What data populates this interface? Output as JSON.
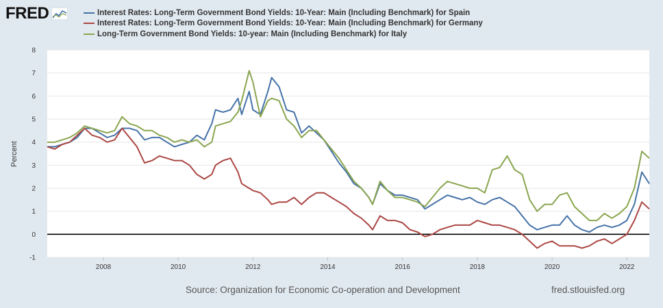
{
  "logo": {
    "text": "FRED"
  },
  "footer": {
    "source": "Source: Organization for Economic Co-operation and Development",
    "site": "fred.stlouisfed.org"
  },
  "chart_data": {
    "type": "line",
    "ylabel": "Percent",
    "ylim": [
      -1,
      8
    ],
    "yticks": [
      -1,
      0,
      1,
      2,
      3,
      4,
      5,
      6,
      7,
      8
    ],
    "xlim": [
      2006.5,
      2022.6
    ],
    "xticks": [
      2008,
      2010,
      2012,
      2014,
      2016,
      2018,
      2020,
      2022
    ],
    "zero_line": true,
    "grid": "horizontal",
    "legend_position": "top",
    "series": [
      {
        "name": "Interest Rates: Long-Term Government Bond Yields: 10-Year: Main (Including Benchmark) for Spain",
        "color": "#4572a7",
        "points": [
          [
            2006.5,
            3.8
          ],
          [
            2006.7,
            3.8
          ],
          [
            2006.9,
            3.9
          ],
          [
            2007.1,
            4.0
          ],
          [
            2007.3,
            4.2
          ],
          [
            2007.5,
            4.6
          ],
          [
            2007.7,
            4.6
          ],
          [
            2007.9,
            4.4
          ],
          [
            2008.1,
            4.2
          ],
          [
            2008.3,
            4.3
          ],
          [
            2008.5,
            4.6
          ],
          [
            2008.7,
            4.6
          ],
          [
            2008.9,
            4.5
          ],
          [
            2009.1,
            4.1
          ],
          [
            2009.3,
            4.2
          ],
          [
            2009.5,
            4.2
          ],
          [
            2009.7,
            4.0
          ],
          [
            2009.9,
            3.8
          ],
          [
            2010.1,
            3.9
          ],
          [
            2010.3,
            4.0
          ],
          [
            2010.5,
            4.3
          ],
          [
            2010.7,
            4.1
          ],
          [
            2010.9,
            4.8
          ],
          [
            2011.0,
            5.4
          ],
          [
            2011.2,
            5.3
          ],
          [
            2011.4,
            5.4
          ],
          [
            2011.6,
            5.9
          ],
          [
            2011.7,
            5.2
          ],
          [
            2011.9,
            6.2
          ],
          [
            2012.0,
            5.4
          ],
          [
            2012.2,
            5.2
          ],
          [
            2012.4,
            6.2
          ],
          [
            2012.5,
            6.8
          ],
          [
            2012.7,
            6.4
          ],
          [
            2012.9,
            5.4
          ],
          [
            2013.1,
            5.3
          ],
          [
            2013.3,
            4.4
          ],
          [
            2013.5,
            4.7
          ],
          [
            2013.7,
            4.4
          ],
          [
            2013.9,
            4.1
          ],
          [
            2014.1,
            3.6
          ],
          [
            2014.3,
            3.1
          ],
          [
            2014.5,
            2.7
          ],
          [
            2014.7,
            2.2
          ],
          [
            2014.9,
            2.0
          ],
          [
            2015.1,
            1.6
          ],
          [
            2015.2,
            1.3
          ],
          [
            2015.4,
            2.2
          ],
          [
            2015.6,
            1.9
          ],
          [
            2015.8,
            1.7
          ],
          [
            2016.0,
            1.7
          ],
          [
            2016.2,
            1.6
          ],
          [
            2016.4,
            1.5
          ],
          [
            2016.6,
            1.1
          ],
          [
            2016.8,
            1.3
          ],
          [
            2017.0,
            1.5
          ],
          [
            2017.2,
            1.7
          ],
          [
            2017.4,
            1.6
          ],
          [
            2017.6,
            1.5
          ],
          [
            2017.8,
            1.6
          ],
          [
            2018.0,
            1.4
          ],
          [
            2018.2,
            1.3
          ],
          [
            2018.4,
            1.5
          ],
          [
            2018.6,
            1.6
          ],
          [
            2018.8,
            1.4
          ],
          [
            2019.0,
            1.2
          ],
          [
            2019.2,
            0.8
          ],
          [
            2019.4,
            0.4
          ],
          [
            2019.6,
            0.2
          ],
          [
            2019.8,
            0.3
          ],
          [
            2020.0,
            0.4
          ],
          [
            2020.2,
            0.4
          ],
          [
            2020.4,
            0.8
          ],
          [
            2020.6,
            0.4
          ],
          [
            2020.8,
            0.2
          ],
          [
            2021.0,
            0.1
          ],
          [
            2021.2,
            0.3
          ],
          [
            2021.4,
            0.4
          ],
          [
            2021.6,
            0.3
          ],
          [
            2021.8,
            0.4
          ],
          [
            2022.0,
            0.6
          ],
          [
            2022.2,
            1.3
          ],
          [
            2022.4,
            2.7
          ],
          [
            2022.6,
            2.2
          ]
        ]
      },
      {
        "name": "Interest Rates: Long-Term Government Bond Yields: 10-Year: Main (Including Benchmark) for Germany",
        "color": "#aa4643",
        "points": [
          [
            2006.5,
            3.8
          ],
          [
            2006.7,
            3.7
          ],
          [
            2006.9,
            3.9
          ],
          [
            2007.1,
            4.0
          ],
          [
            2007.3,
            4.3
          ],
          [
            2007.5,
            4.6
          ],
          [
            2007.7,
            4.3
          ],
          [
            2007.9,
            4.2
          ],
          [
            2008.1,
            4.0
          ],
          [
            2008.3,
            4.1
          ],
          [
            2008.5,
            4.6
          ],
          [
            2008.7,
            4.2
          ],
          [
            2008.9,
            3.8
          ],
          [
            2009.1,
            3.1
          ],
          [
            2009.3,
            3.2
          ],
          [
            2009.5,
            3.4
          ],
          [
            2009.7,
            3.3
          ],
          [
            2009.9,
            3.2
          ],
          [
            2010.1,
            3.2
          ],
          [
            2010.3,
            3.0
          ],
          [
            2010.5,
            2.6
          ],
          [
            2010.7,
            2.4
          ],
          [
            2010.9,
            2.6
          ],
          [
            2011.0,
            3.0
          ],
          [
            2011.2,
            3.2
          ],
          [
            2011.4,
            3.3
          ],
          [
            2011.6,
            2.7
          ],
          [
            2011.7,
            2.2
          ],
          [
            2011.9,
            2.0
          ],
          [
            2012.0,
            1.9
          ],
          [
            2012.2,
            1.8
          ],
          [
            2012.4,
            1.5
          ],
          [
            2012.5,
            1.3
          ],
          [
            2012.7,
            1.4
          ],
          [
            2012.9,
            1.4
          ],
          [
            2013.1,
            1.6
          ],
          [
            2013.3,
            1.3
          ],
          [
            2013.5,
            1.6
          ],
          [
            2013.7,
            1.8
          ],
          [
            2013.9,
            1.8
          ],
          [
            2014.1,
            1.6
          ],
          [
            2014.3,
            1.4
          ],
          [
            2014.5,
            1.2
          ],
          [
            2014.7,
            0.9
          ],
          [
            2014.9,
            0.7
          ],
          [
            2015.1,
            0.4
          ],
          [
            2015.2,
            0.2
          ],
          [
            2015.4,
            0.8
          ],
          [
            2015.6,
            0.6
          ],
          [
            2015.8,
            0.6
          ],
          [
            2016.0,
            0.5
          ],
          [
            2016.2,
            0.2
          ],
          [
            2016.4,
            0.1
          ],
          [
            2016.6,
            -0.1
          ],
          [
            2016.8,
            0.0
          ],
          [
            2017.0,
            0.2
          ],
          [
            2017.2,
            0.3
          ],
          [
            2017.4,
            0.4
          ],
          [
            2017.6,
            0.4
          ],
          [
            2017.8,
            0.4
          ],
          [
            2018.0,
            0.6
          ],
          [
            2018.2,
            0.5
          ],
          [
            2018.4,
            0.4
          ],
          [
            2018.6,
            0.4
          ],
          [
            2018.8,
            0.3
          ],
          [
            2019.0,
            0.2
          ],
          [
            2019.2,
            0.0
          ],
          [
            2019.4,
            -0.3
          ],
          [
            2019.6,
            -0.6
          ],
          [
            2019.8,
            -0.4
          ],
          [
            2020.0,
            -0.3
          ],
          [
            2020.2,
            -0.5
          ],
          [
            2020.4,
            -0.5
          ],
          [
            2020.6,
            -0.5
          ],
          [
            2020.8,
            -0.6
          ],
          [
            2021.0,
            -0.5
          ],
          [
            2021.2,
            -0.3
          ],
          [
            2021.4,
            -0.2
          ],
          [
            2021.6,
            -0.4
          ],
          [
            2021.8,
            -0.2
          ],
          [
            2022.0,
            0.0
          ],
          [
            2022.2,
            0.6
          ],
          [
            2022.4,
            1.4
          ],
          [
            2022.6,
            1.1
          ]
        ]
      },
      {
        "name": "Long-Term Government Bond Yields: 10-year: Main (Including Benchmark) for Italy",
        "color": "#89a54e",
        "points": [
          [
            2006.5,
            4.0
          ],
          [
            2006.7,
            4.0
          ],
          [
            2006.9,
            4.1
          ],
          [
            2007.1,
            4.2
          ],
          [
            2007.3,
            4.4
          ],
          [
            2007.5,
            4.7
          ],
          [
            2007.7,
            4.6
          ],
          [
            2007.9,
            4.5
          ],
          [
            2008.1,
            4.4
          ],
          [
            2008.3,
            4.5
          ],
          [
            2008.5,
            5.1
          ],
          [
            2008.7,
            4.8
          ],
          [
            2008.9,
            4.7
          ],
          [
            2009.1,
            4.5
          ],
          [
            2009.3,
            4.5
          ],
          [
            2009.5,
            4.3
          ],
          [
            2009.7,
            4.2
          ],
          [
            2009.9,
            4.0
          ],
          [
            2010.1,
            4.1
          ],
          [
            2010.3,
            4.0
          ],
          [
            2010.5,
            4.1
          ],
          [
            2010.7,
            3.8
          ],
          [
            2010.9,
            4.0
          ],
          [
            2011.0,
            4.7
          ],
          [
            2011.2,
            4.8
          ],
          [
            2011.4,
            4.9
          ],
          [
            2011.6,
            5.3
          ],
          [
            2011.7,
            5.8
          ],
          [
            2011.9,
            7.1
          ],
          [
            2012.0,
            6.6
          ],
          [
            2012.2,
            5.1
          ],
          [
            2012.4,
            5.8
          ],
          [
            2012.5,
            5.9
          ],
          [
            2012.7,
            5.8
          ],
          [
            2012.9,
            5.0
          ],
          [
            2013.1,
            4.7
          ],
          [
            2013.3,
            4.2
          ],
          [
            2013.5,
            4.5
          ],
          [
            2013.7,
            4.5
          ],
          [
            2013.9,
            4.1
          ],
          [
            2014.1,
            3.7
          ],
          [
            2014.3,
            3.3
          ],
          [
            2014.5,
            2.8
          ],
          [
            2014.7,
            2.3
          ],
          [
            2014.9,
            2.0
          ],
          [
            2015.1,
            1.6
          ],
          [
            2015.2,
            1.3
          ],
          [
            2015.4,
            2.3
          ],
          [
            2015.6,
            1.9
          ],
          [
            2015.8,
            1.6
          ],
          [
            2016.0,
            1.6
          ],
          [
            2016.2,
            1.5
          ],
          [
            2016.4,
            1.4
          ],
          [
            2016.6,
            1.2
          ],
          [
            2016.8,
            1.6
          ],
          [
            2017.0,
            2.0
          ],
          [
            2017.2,
            2.3
          ],
          [
            2017.4,
            2.2
          ],
          [
            2017.6,
            2.1
          ],
          [
            2017.8,
            2.0
          ],
          [
            2018.0,
            2.0
          ],
          [
            2018.2,
            1.8
          ],
          [
            2018.4,
            2.8
          ],
          [
            2018.6,
            2.9
          ],
          [
            2018.8,
            3.4
          ],
          [
            2019.0,
            2.8
          ],
          [
            2019.2,
            2.6
          ],
          [
            2019.4,
            1.5
          ],
          [
            2019.6,
            1.0
          ],
          [
            2019.8,
            1.3
          ],
          [
            2020.0,
            1.3
          ],
          [
            2020.2,
            1.7
          ],
          [
            2020.4,
            1.8
          ],
          [
            2020.6,
            1.2
          ],
          [
            2020.8,
            0.9
          ],
          [
            2021.0,
            0.6
          ],
          [
            2021.2,
            0.6
          ],
          [
            2021.4,
            0.9
          ],
          [
            2021.6,
            0.7
          ],
          [
            2021.8,
            0.9
          ],
          [
            2022.0,
            1.2
          ],
          [
            2022.2,
            2.0
          ],
          [
            2022.4,
            3.6
          ],
          [
            2022.6,
            3.3
          ]
        ]
      }
    ]
  }
}
